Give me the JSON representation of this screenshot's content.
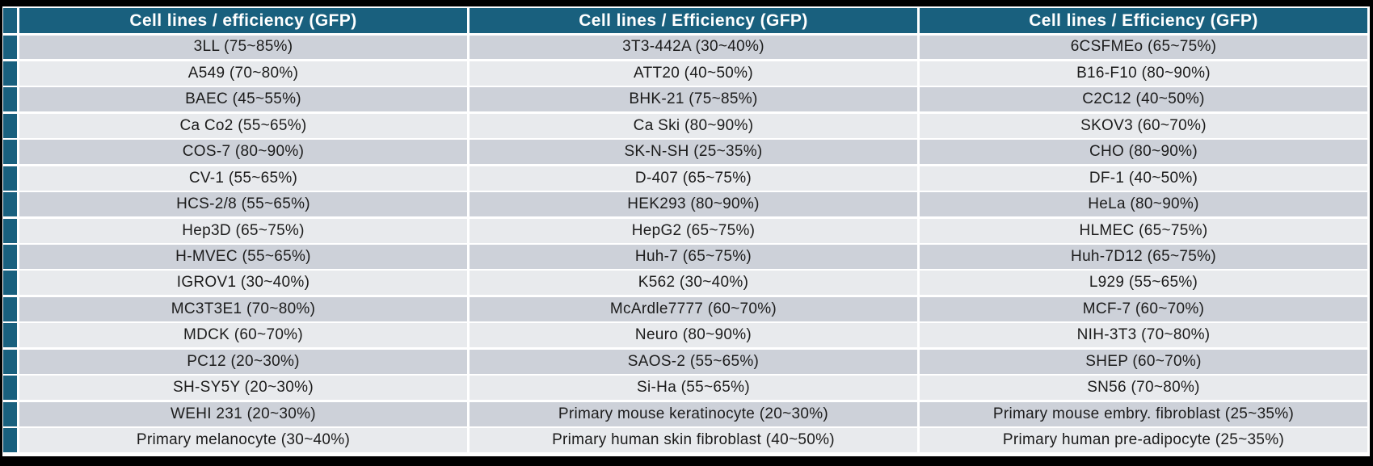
{
  "colors": {
    "page_background": "#000000",
    "table_background": "#ffffff",
    "header_bg": "#19607e",
    "accent_marker": "#19607e",
    "row_dark": "#cdd1d9",
    "row_light": "#e8eaed",
    "header_text": "#ffffff",
    "body_text": "#1c1c1c"
  },
  "table": {
    "columns": [
      {
        "header": "Cell lines / efficiency (GFP)",
        "rows": [
          "3LL (75~85%)",
          "A549 (70~80%)",
          "BAEC (45~55%)",
          "Ca Co2 (55~65%)",
          "COS-7 (80~90%)",
          "CV-1 (55~65%)",
          "HCS-2/8 (55~65%)",
          "Hep3D (65~75%)",
          "H-MVEC (55~65%)",
          "IGROV1 (30~40%)",
          "MC3T3E1 (70~80%)",
          "MDCK (60~70%)",
          "PC12 (20~30%)",
          "SH-SY5Y (20~30%)",
          "WEHI 231 (20~30%)",
          "Primary melanocyte (30~40%)"
        ]
      },
      {
        "header": "Cell lines / Efficiency (GFP)",
        "rows": [
          "3T3-442A (30~40%)",
          "ATT20 (40~50%)",
          "BHK-21 (75~85%)",
          "Ca Ski (80~90%)",
          "SK-N-SH (25~35%)",
          "D-407 (65~75%)",
          "HEK293 (80~90%)",
          "HepG2 (65~75%)",
          "Huh-7 (65~75%)",
          "K562 (30~40%)",
          "McArdle7777 (60~70%)",
          "Neuro (80~90%)",
          "SAOS-2 (55~65%)",
          "Si-Ha (55~65%)",
          "Primary mouse keratinocyte (20~30%)",
          "Primary human skin fibroblast (40~50%)"
        ]
      },
      {
        "header": "Cell lines / Efficiency (GFP)",
        "rows": [
          "6CSFMEo (65~75%)",
          "B16-F10 (80~90%)",
          "C2C12 (40~50%)",
          "SKOV3 (60~70%)",
          "CHO (80~90%)",
          "DF-1 (40~50%)",
          "HeLa (80~90%)",
          "HLMEC (65~75%)",
          "Huh-7D12 (65~75%)",
          "L929 (55~65%)",
          "MCF-7 (60~70%)",
          "NIH-3T3 (70~80%)",
          "SHEP (60~70%)",
          "SN56 (70~80%)",
          "Primary mouse embry. fibroblast (25~35%)",
          "Primary human pre-adipocyte (25~35%)"
        ]
      }
    ]
  }
}
